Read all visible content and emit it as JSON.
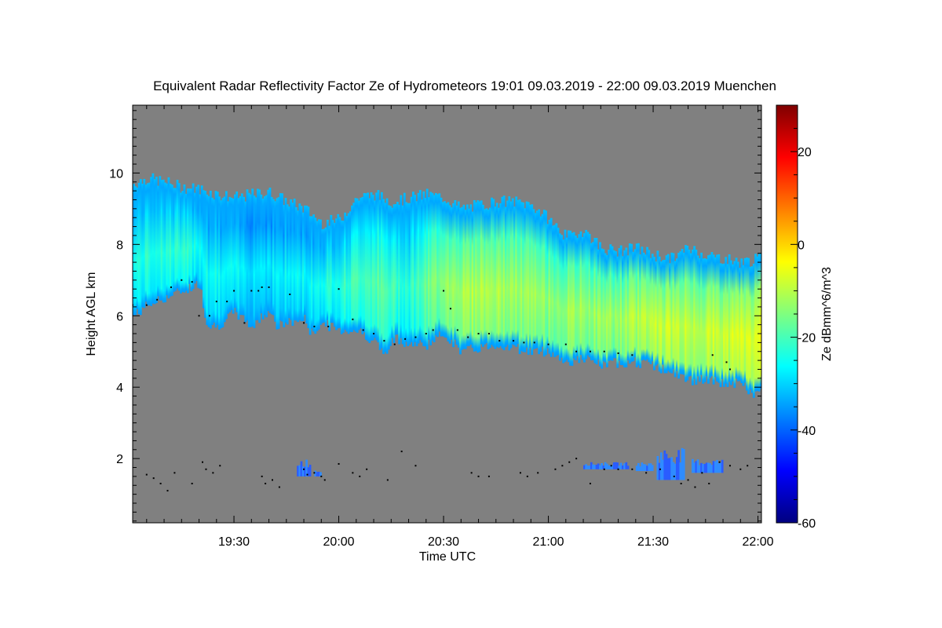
{
  "chart_data": {
    "type": "heatmap",
    "title": "Equivalent Radar Reflectivity Factor Ze of Hydrometeors   19:01 09.03.2019 - 22:00 09.03.2019 Muenchen",
    "xlabel": "Time UTC",
    "ylabel": "Height AGL km",
    "colorbar_label": "Ze dBmm^6/m^3",
    "x_range_minutes_utc": [
      1141,
      1321
    ],
    "x_ticks": [
      {
        "minute": 1170,
        "label": "19:30"
      },
      {
        "minute": 1200,
        "label": "20:00"
      },
      {
        "minute": 1230,
        "label": "20:30"
      },
      {
        "minute": 1260,
        "label": "21:00"
      },
      {
        "minute": 1290,
        "label": "21:30"
      },
      {
        "minute": 1320,
        "label": "22:00"
      }
    ],
    "ylim": [
      0.2,
      11.9
    ],
    "y_ticks": [
      {
        "value": 2,
        "label": "2"
      },
      {
        "value": 4,
        "label": "4"
      },
      {
        "value": 6,
        "label": "6"
      },
      {
        "value": 8,
        "label": "8"
      },
      {
        "value": 10,
        "label": "10"
      }
    ],
    "color_range": [
      -60,
      30
    ],
    "color_ticks": [
      {
        "value": -60,
        "label": "-60"
      },
      {
        "value": -40,
        "label": "-40"
      },
      {
        "value": -20,
        "label": "-20"
      },
      {
        "value": 0,
        "label": "0"
      },
      {
        "value": 20,
        "label": "20"
      }
    ],
    "colormap": [
      "#00007f",
      "#0000ff",
      "#007fff",
      "#00ffff",
      "#7fff7f",
      "#ffff00",
      "#ff7f00",
      "#ff0000",
      "#7f0000"
    ],
    "background_color": "#808080",
    "cloud_top_km": [
      [
        1141,
        9.7
      ],
      [
        1145,
        9.85
      ],
      [
        1150,
        9.75
      ],
      [
        1155,
        9.6
      ],
      [
        1160,
        9.55
      ],
      [
        1165,
        9.4
      ],
      [
        1170,
        9.3
      ],
      [
        1175,
        9.4
      ],
      [
        1180,
        9.45
      ],
      [
        1185,
        9.2
      ],
      [
        1190,
        9.0
      ],
      [
        1195,
        8.6
      ],
      [
        1200,
        8.7
      ],
      [
        1205,
        9.3
      ],
      [
        1210,
        9.4
      ],
      [
        1215,
        9.2
      ],
      [
        1220,
        9.3
      ],
      [
        1225,
        9.4
      ],
      [
        1230,
        9.3
      ],
      [
        1235,
        9.0
      ],
      [
        1240,
        9.1
      ],
      [
        1245,
        9.2
      ],
      [
        1250,
        9.2
      ],
      [
        1255,
        9.1
      ],
      [
        1260,
        8.7
      ],
      [
        1265,
        8.2
      ],
      [
        1270,
        8.4
      ],
      [
        1275,
        7.9
      ],
      [
        1280,
        7.8
      ],
      [
        1285,
        7.9
      ],
      [
        1290,
        7.7
      ],
      [
        1295,
        7.6
      ],
      [
        1300,
        7.9
      ],
      [
        1305,
        7.7
      ],
      [
        1310,
        7.6
      ],
      [
        1315,
        7.5
      ],
      [
        1321,
        7.6
      ]
    ],
    "cloud_base_km": [
      [
        1141,
        6.0
      ],
      [
        1145,
        6.3
      ],
      [
        1150,
        6.5
      ],
      [
        1155,
        6.7
      ],
      [
        1160,
        6.9
      ],
      [
        1162,
        5.8
      ],
      [
        1165,
        5.7
      ],
      [
        1170,
        6.1
      ],
      [
        1175,
        5.7
      ],
      [
        1180,
        6.2
      ],
      [
        1182,
        5.7
      ],
      [
        1185,
        5.8
      ],
      [
        1190,
        5.9
      ],
      [
        1192,
        5.5
      ],
      [
        1195,
        5.8
      ],
      [
        1200,
        5.6
      ],
      [
        1205,
        5.6
      ],
      [
        1210,
        5.3
      ],
      [
        1213,
        4.9
      ],
      [
        1216,
        5.4
      ],
      [
        1220,
        5.2
      ],
      [
        1225,
        5.2
      ],
      [
        1230,
        5.5
      ],
      [
        1235,
        5.0
      ],
      [
        1240,
        5.1
      ],
      [
        1245,
        5.2
      ],
      [
        1250,
        5.1
      ],
      [
        1255,
        5.0
      ],
      [
        1260,
        5.0
      ],
      [
        1265,
        4.7
      ],
      [
        1270,
        4.8
      ],
      [
        1275,
        4.6
      ],
      [
        1280,
        4.7
      ],
      [
        1285,
        4.7
      ],
      [
        1290,
        4.6
      ],
      [
        1295,
        4.4
      ],
      [
        1300,
        4.2
      ],
      [
        1305,
        4.2
      ],
      [
        1310,
        4.1
      ],
      [
        1315,
        4.1
      ],
      [
        1318,
        3.8
      ],
      [
        1321,
        3.9
      ]
    ],
    "reflectivity_dbz_profile": [
      [
        1141,
        -24
      ],
      [
        1150,
        -22
      ],
      [
        1160,
        -24
      ],
      [
        1170,
        -27
      ],
      [
        1180,
        -27
      ],
      [
        1190,
        -26
      ],
      [
        1200,
        -22
      ],
      [
        1210,
        -18
      ],
      [
        1220,
        -22
      ],
      [
        1230,
        -12
      ],
      [
        1240,
        -10
      ],
      [
        1250,
        -12
      ],
      [
        1260,
        -13
      ],
      [
        1270,
        -12
      ],
      [
        1280,
        -12
      ],
      [
        1290,
        -8
      ],
      [
        1300,
        -9
      ],
      [
        1310,
        -8
      ],
      [
        1321,
        -6
      ]
    ],
    "melting_layer_points_km": [
      [
        1141,
        6.3
      ],
      [
        1145,
        6.3
      ],
      [
        1148,
        6.45
      ],
      [
        1152,
        6.8
      ],
      [
        1155,
        7.0
      ],
      [
        1158,
        6.95
      ],
      [
        1160,
        6.0
      ],
      [
        1163,
        6.0
      ],
      [
        1165,
        6.4
      ],
      [
        1168,
        6.4
      ],
      [
        1170,
        6.7
      ],
      [
        1173,
        5.8
      ],
      [
        1175,
        6.7
      ],
      [
        1177,
        6.7
      ],
      [
        1178,
        6.8
      ],
      [
        1180,
        6.8
      ],
      [
        1186,
        6.6
      ],
      [
        1190,
        5.8
      ],
      [
        1193,
        5.7
      ],
      [
        1197,
        5.7
      ],
      [
        1200,
        6.75
      ],
      [
        1204,
        5.9
      ],
      [
        1207,
        5.6
      ],
      [
        1210,
        5.5
      ],
      [
        1213,
        5.3
      ],
      [
        1216,
        5.2
      ],
      [
        1219,
        5.35
      ],
      [
        1222,
        5.4
      ],
      [
        1225,
        5.5
      ],
      [
        1227,
        5.6
      ],
      [
        1230,
        6.7
      ],
      [
        1232,
        6.2
      ],
      [
        1234,
        5.6
      ],
      [
        1237,
        5.4
      ],
      [
        1240,
        5.5
      ],
      [
        1243,
        5.5
      ],
      [
        1246,
        5.3
      ],
      [
        1250,
        5.3
      ],
      [
        1253,
        5.25
      ],
      [
        1256,
        5.25
      ],
      [
        1260,
        5.2
      ],
      [
        1265,
        5.2
      ],
      [
        1268,
        5.0
      ],
      [
        1272,
        5.0
      ],
      [
        1276,
        5.0
      ],
      [
        1280,
        4.95
      ],
      [
        1284,
        4.9
      ],
      [
        1307,
        4.9
      ],
      [
        1311,
        4.7
      ],
      [
        1312,
        4.5
      ]
    ],
    "clutter_points_km": [
      [
        1145,
        1.55
      ],
      [
        1147,
        1.45
      ],
      [
        1149,
        1.3
      ],
      [
        1151,
        1.1
      ],
      [
        1153,
        1.6
      ],
      [
        1158,
        1.3
      ],
      [
        1161,
        1.9
      ],
      [
        1162,
        1.7
      ],
      [
        1164,
        1.6
      ],
      [
        1166,
        1.8
      ],
      [
        1178,
        1.5
      ],
      [
        1179,
        1.3
      ],
      [
        1181,
        1.4
      ],
      [
        1183,
        1.2
      ],
      [
        1190,
        1.7
      ],
      [
        1191,
        1.55
      ],
      [
        1193,
        1.6
      ],
      [
        1195,
        1.5
      ],
      [
        1196,
        1.4
      ],
      [
        1200,
        1.85
      ],
      [
        1204,
        1.6
      ],
      [
        1206,
        1.5
      ],
      [
        1208,
        1.7
      ],
      [
        1214,
        1.4
      ],
      [
        1218,
        2.2
      ],
      [
        1222,
        1.8
      ],
      [
        1238,
        1.6
      ],
      [
        1240,
        1.5
      ],
      [
        1243,
        1.5
      ],
      [
        1252,
        1.6
      ],
      [
        1254,
        1.5
      ],
      [
        1257,
        1.6
      ],
      [
        1262,
        1.7
      ],
      [
        1264,
        1.8
      ],
      [
        1266,
        1.9
      ],
      [
        1268,
        2.0
      ],
      [
        1272,
        1.3
      ],
      [
        1276,
        1.7
      ],
      [
        1278,
        1.8
      ],
      [
        1280,
        1.7
      ],
      [
        1284,
        1.7
      ],
      [
        1288,
        1.6
      ],
      [
        1292,
        1.7
      ],
      [
        1296,
        1.5
      ],
      [
        1298,
        1.3
      ],
      [
        1300,
        1.4
      ],
      [
        1302,
        1.2
      ],
      [
        1304,
        1.6
      ],
      [
        1306,
        1.3
      ],
      [
        1309,
        1.9
      ],
      [
        1312,
        1.8
      ],
      [
        1315,
        1.7
      ],
      [
        1317,
        1.8
      ]
    ],
    "clutter_echo_patches": [
      {
        "t0": 1188,
        "t1": 1192,
        "h0": 1.5,
        "h1": 2.0
      },
      {
        "t0": 1193,
        "t1": 1195,
        "h0": 1.5,
        "h1": 1.7
      },
      {
        "t0": 1270,
        "t1": 1283,
        "h0": 1.7,
        "h1": 1.9
      },
      {
        "t0": 1285,
        "t1": 1290,
        "h0": 1.65,
        "h1": 1.9
      },
      {
        "t0": 1291,
        "t1": 1299,
        "h0": 1.4,
        "h1": 2.3
      },
      {
        "t0": 1301,
        "t1": 1310,
        "h0": 1.6,
        "h1": 2.0
      }
    ]
  }
}
